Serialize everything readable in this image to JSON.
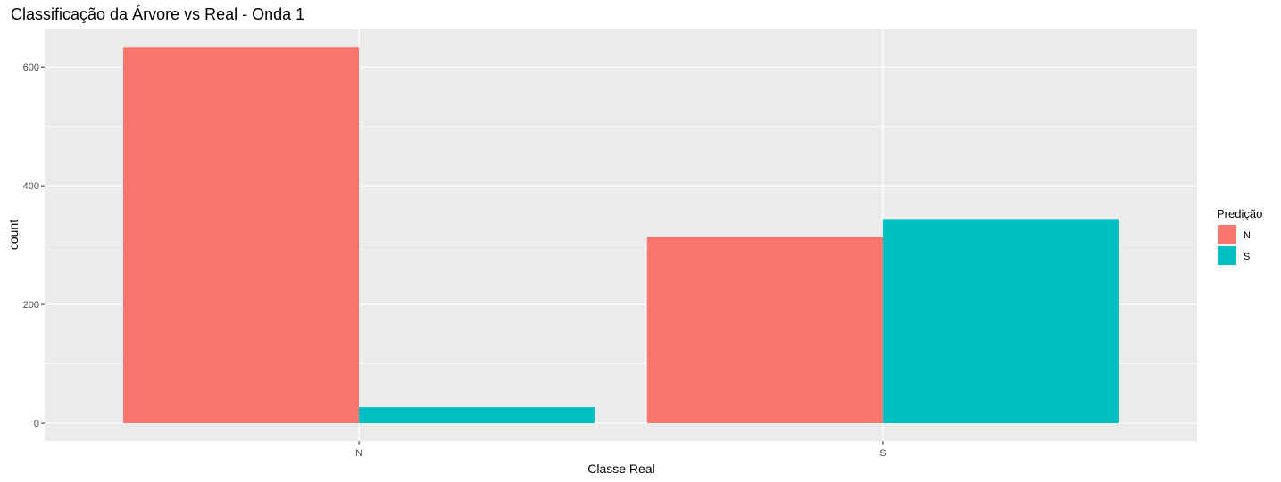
{
  "chart_data": {
    "type": "bar",
    "title": "Classificação da Árvore vs Real - Onda 1",
    "xlabel": "Classe Real",
    "ylabel": "count",
    "categories": [
      "N",
      "S"
    ],
    "series": [
      {
        "name": "N",
        "color": "#F8766D",
        "values": [
          633,
          314
        ]
      },
      {
        "name": "S",
        "color": "#00BFC4",
        "values": [
          27,
          344
        ]
      }
    ],
    "ylim": [
      -30,
      665
    ],
    "yticks": [
      0,
      200,
      400,
      600
    ],
    "yticks_labels": [
      "0",
      "200",
      "400",
      "600"
    ],
    "grid": true,
    "legend": {
      "title": "Predição",
      "position": "right"
    },
    "panel_color": "#EBEBEB",
    "grid_color": "#FFFFFF"
  }
}
